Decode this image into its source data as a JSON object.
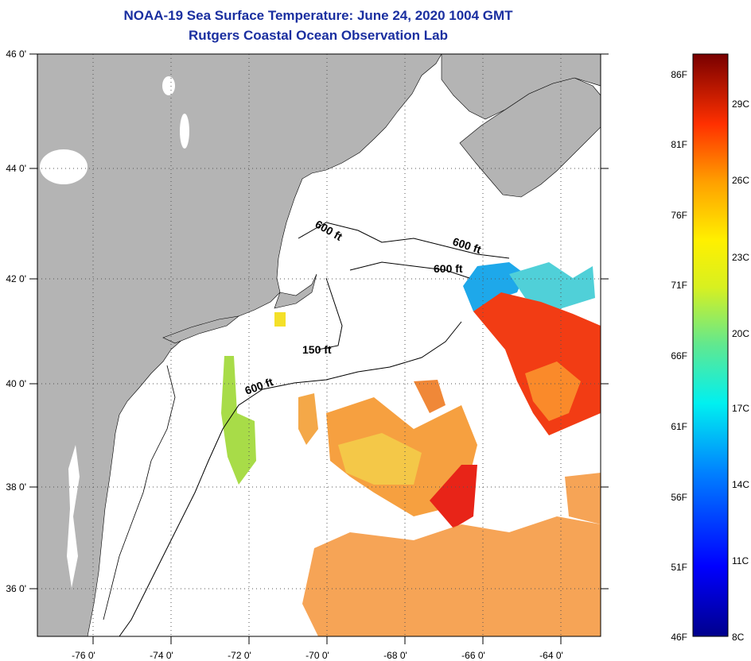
{
  "title": "NOAA-19 Sea Surface Temperature:  June 24, 2020 1004 GMT",
  "subtitle": "Rutgers Coastal Ocean Observation Lab",
  "map": {
    "lat_labels": [
      "46 0'",
      "44 0'",
      "42 0'",
      "40 0'",
      "38 0'",
      "36 0'"
    ],
    "lon_labels": [
      "-76 0'",
      "-74 0'",
      "-72 0'",
      "-70 0'",
      "-68 0'",
      "-66 0'",
      "-64 0'"
    ],
    "contours": [
      "600 ft",
      "600 ft",
      "600 ft",
      "150 ft",
      "600 ft"
    ],
    "land_color": "#b4b4b4"
  },
  "colorbar": {
    "fahrenheit": [
      "86F",
      "81F",
      "76F",
      "71F",
      "66F",
      "61F",
      "56F",
      "51F",
      "46F"
    ],
    "celsius": [
      "29C",
      "26C",
      "23C",
      "20C",
      "17C",
      "14C",
      "11C",
      "8C"
    ]
  }
}
